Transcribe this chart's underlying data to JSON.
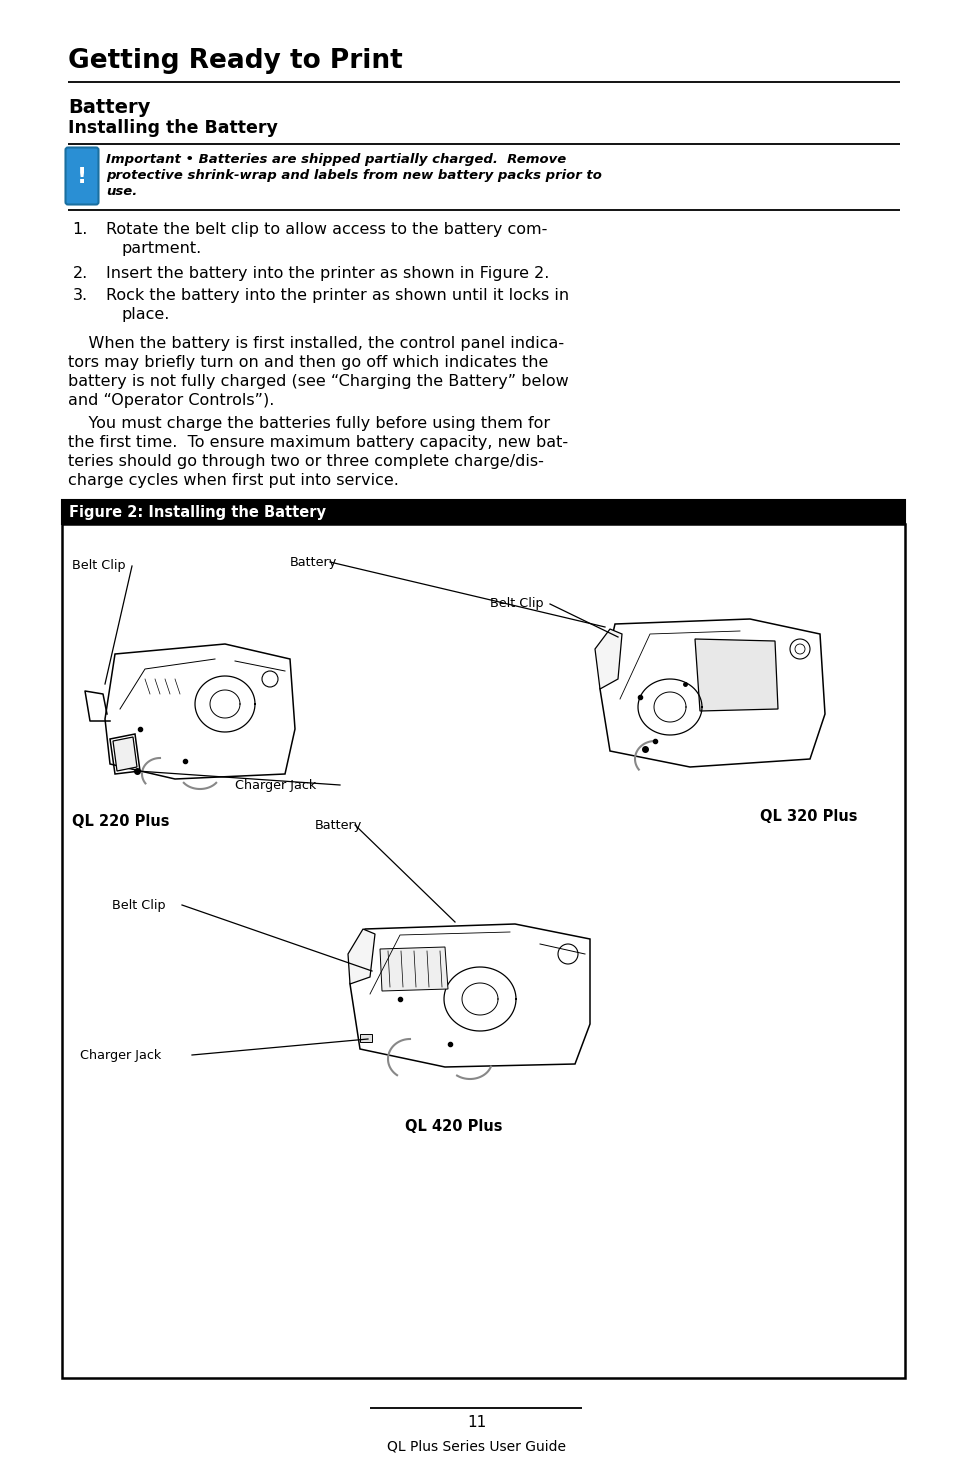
{
  "page_bg": "#ffffff",
  "title": "Getting Ready to Print",
  "section1": "Battery",
  "section2": "Installing the Battery",
  "warn_line1": "Important • Batteries are shipped partially charged.  Remove",
  "warn_line2": "protective shrink-wrap and labels from new battery packs prior to",
  "warn_line3": "use.",
  "step1a": "Rotate the belt clip to allow access to the battery com-",
  "step1b": "partment.",
  "step2": "Insert the battery into the printer as shown in Figure 2.",
  "step3a": "Rock the battery into the printer as shown until it locks in",
  "step3b": "place.",
  "p1a": "    When the battery is first installed, the control panel indica-",
  "p1b": "tors may briefly turn on and then go off which indicates the",
  "p1c": "battery is not fully charged (see “Charging the Battery” below",
  "p1d": "and “Operator Controls”).",
  "p2a": "    You must charge the batteries fully before using them for",
  "p2b": "the first time.  To ensure maximum battery capacity, new bat-",
  "p2c": "teries should go through two or three complete charge/dis-",
  "p2d": "charge cycles when first put into service.",
  "fig_title": "Figure 2: Installing the Battery",
  "lbl_beltclip_l": "Belt Clip",
  "lbl_battery_t": "Battery",
  "lbl_beltclip_r": "Belt Clip",
  "lbl_chargerjack_m": "Charger Jack",
  "lbl_ql220": "QL 220 Plus",
  "lbl_battery_m": "Battery",
  "lbl_ql320": "QL 320 Plus",
  "lbl_beltclip_b": "Belt Clip",
  "lbl_chargerjack_b": "Charger Jack",
  "lbl_ql420": "QL 420 Plus",
  "page_num": "11",
  "footer": "QL Plus Series User Guide",
  "icon_bg": "#2a8fd4",
  "icon_border": "#1a6fa0"
}
